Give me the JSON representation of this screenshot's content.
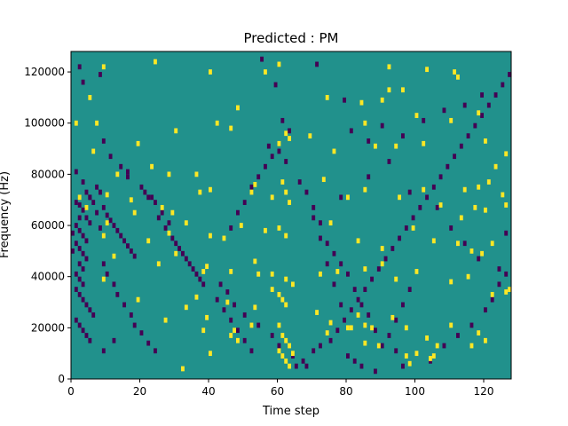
{
  "chart_data": {
    "type": "heatmap",
    "title": "Predicted : PM",
    "xlabel": "Time step",
    "ylabel": "Frequency (Hz)",
    "xlim": [
      0,
      128
    ],
    "ylim": [
      0,
      128000
    ],
    "x_ticks": [
      0,
      20,
      40,
      60,
      80,
      100,
      120
    ],
    "x_tick_labels": [
      "0",
      "20",
      "40",
      "60",
      "80",
      "100",
      "120"
    ],
    "y_ticks": [
      0,
      20000,
      40000,
      60000,
      80000,
      100000,
      120000
    ],
    "y_tick_labels": [
      "0",
      "20000",
      "40000",
      "60000",
      "80000",
      "100000",
      "120000"
    ],
    "colormap": "viridis",
    "value_levels": {
      "low": -1,
      "mid": 0,
      "high": 1
    },
    "colors": {
      "low": "#440154",
      "mid": "#21918c",
      "high": "#fde725"
    },
    "bin_width": 1,
    "bin_height": 2000,
    "cells_high": [
      [
        9,
        121000
      ],
      [
        40,
        119000
      ],
      [
        56,
        119000
      ],
      [
        92,
        121000
      ],
      [
        103,
        120000
      ],
      [
        111,
        119000
      ],
      [
        24,
        123000
      ],
      [
        60,
        122000
      ],
      [
        5,
        109000
      ],
      [
        92,
        112000
      ],
      [
        96,
        112000
      ],
      [
        112,
        117000
      ],
      [
        74,
        109000
      ],
      [
        84,
        107000
      ],
      [
        90,
        108000
      ],
      [
        100,
        102000
      ],
      [
        110,
        100000
      ],
      [
        118,
        103000
      ],
      [
        1,
        99000
      ],
      [
        7,
        99000
      ],
      [
        42,
        99000
      ],
      [
        48,
        105000
      ],
      [
        62,
        95000
      ],
      [
        63,
        93000
      ],
      [
        85,
        99000
      ],
      [
        6,
        88000
      ],
      [
        19,
        91000
      ],
      [
        30,
        96000
      ],
      [
        46,
        97000
      ],
      [
        60,
        91000
      ],
      [
        69,
        94000
      ],
      [
        76,
        88000
      ],
      [
        88,
        90000
      ],
      [
        94,
        90000
      ],
      [
        102,
        91000
      ],
      [
        120,
        92000
      ],
      [
        123,
        82000
      ],
      [
        126,
        87000
      ],
      [
        13,
        79000
      ],
      [
        23,
        82000
      ],
      [
        28,
        79000
      ],
      [
        36,
        79000
      ],
      [
        53,
        75000
      ],
      [
        61,
        76000
      ],
      [
        73,
        77000
      ],
      [
        85,
        73000
      ],
      [
        102,
        73000
      ],
      [
        114,
        73000
      ],
      [
        118,
        74000
      ],
      [
        121,
        76000
      ],
      [
        125,
        71000
      ],
      [
        2,
        70000
      ],
      [
        10,
        71000
      ],
      [
        17,
        69000
      ],
      [
        18,
        64000
      ],
      [
        26,
        66000
      ],
      [
        29,
        64000
      ],
      [
        37,
        72000
      ],
      [
        40,
        73000
      ],
      [
        52,
        72000
      ],
      [
        58,
        70000
      ],
      [
        62,
        72000
      ],
      [
        63,
        68000
      ],
      [
        80,
        70000
      ],
      [
        95,
        70000
      ],
      [
        107,
        67000
      ],
      [
        113,
        62000
      ],
      [
        117,
        66000
      ],
      [
        120,
        65000
      ],
      [
        126,
        67000
      ],
      [
        4,
        66000
      ],
      [
        9,
        55000
      ],
      [
        10,
        60000
      ],
      [
        22,
        53000
      ],
      [
        28,
        56000
      ],
      [
        33,
        60000
      ],
      [
        40,
        55000
      ],
      [
        44,
        54000
      ],
      [
        49,
        59000
      ],
      [
        56,
        57000
      ],
      [
        60,
        58000
      ],
      [
        62,
        55000
      ],
      [
        75,
        60000
      ],
      [
        83,
        53000
      ],
      [
        90,
        50000
      ],
      [
        99,
        58000
      ],
      [
        105,
        53000
      ],
      [
        112,
        52000
      ],
      [
        116,
        49000
      ],
      [
        119,
        48000
      ],
      [
        122,
        52000
      ],
      [
        12,
        47000
      ],
      [
        25,
        44000
      ],
      [
        30,
        48000
      ],
      [
        38,
        41000
      ],
      [
        39,
        43000
      ],
      [
        46,
        41000
      ],
      [
        53,
        45000
      ],
      [
        54,
        40000
      ],
      [
        58,
        40000
      ],
      [
        62,
        38000
      ],
      [
        64,
        36000
      ],
      [
        72,
        40000
      ],
      [
        77,
        41000
      ],
      [
        85,
        42000
      ],
      [
        90,
        44000
      ],
      [
        94,
        38000
      ],
      [
        100,
        41000
      ],
      [
        110,
        37000
      ],
      [
        115,
        39000
      ],
      [
        122,
        32000
      ],
      [
        126,
        33000
      ],
      [
        127,
        34000
      ],
      [
        9,
        38000
      ],
      [
        19,
        30000
      ],
      [
        33,
        27000
      ],
      [
        36,
        31000
      ],
      [
        45,
        29000
      ],
      [
        53,
        27000
      ],
      [
        58,
        34000
      ],
      [
        60,
        32000
      ],
      [
        61,
        30000
      ],
      [
        62,
        28000
      ],
      [
        71,
        25000
      ],
      [
        75,
        21000
      ],
      [
        81,
        19000
      ],
      [
        83,
        24000
      ],
      [
        85,
        20000
      ],
      [
        87,
        19000
      ],
      [
        93,
        23000
      ],
      [
        97,
        19000
      ],
      [
        103,
        15000
      ],
      [
        106,
        12000
      ],
      [
        110,
        20000
      ],
      [
        116,
        12000
      ],
      [
        118,
        17000
      ],
      [
        120,
        14000
      ],
      [
        27,
        22000
      ],
      [
        38,
        18000
      ],
      [
        39,
        23000
      ],
      [
        47,
        18000
      ],
      [
        52,
        20000
      ],
      [
        60,
        20000
      ],
      [
        61,
        16000
      ],
      [
        62,
        14000
      ],
      [
        63,
        12000
      ],
      [
        64,
        9000
      ],
      [
        61,
        8000
      ],
      [
        62,
        6000
      ],
      [
        63,
        4000
      ],
      [
        60,
        10000
      ],
      [
        74,
        17000
      ],
      [
        80,
        19000
      ],
      [
        85,
        13000
      ],
      [
        89,
        12000
      ],
      [
        97,
        8000
      ],
      [
        98,
        5000
      ],
      [
        100,
        9000
      ],
      [
        104,
        7000
      ],
      [
        105,
        8000
      ],
      [
        32,
        3000
      ],
      [
        40,
        9000
      ],
      [
        46,
        16000
      ],
      [
        48,
        14000
      ]
    ],
    "cells_low": [
      [
        1,
        59000
      ],
      [
        2,
        57000
      ],
      [
        3,
        55000
      ],
      [
        4,
        53000
      ],
      [
        2,
        50000
      ],
      [
        3,
        48000
      ],
      [
        4,
        46000
      ],
      [
        2,
        44000
      ],
      [
        3,
        42000
      ],
      [
        1,
        40000
      ],
      [
        2,
        38000
      ],
      [
        3,
        36000
      ],
      [
        1,
        34000
      ],
      [
        2,
        32000
      ],
      [
        3,
        30000
      ],
      [
        4,
        28000
      ],
      [
        5,
        26000
      ],
      [
        6,
        24000
      ],
      [
        1,
        22000
      ],
      [
        2,
        20000
      ],
      [
        3,
        18000
      ],
      [
        4,
        16000
      ],
      [
        5,
        14000
      ],
      [
        0,
        56000
      ],
      [
        1,
        52000
      ],
      [
        0,
        49000
      ],
      [
        2,
        62000
      ],
      [
        1,
        68000
      ],
      [
        2,
        67000
      ],
      [
        3,
        65000
      ],
      [
        4,
        62000
      ],
      [
        5,
        60000
      ],
      [
        3,
        76000
      ],
      [
        4,
        72000
      ],
      [
        5,
        70000
      ],
      [
        6,
        68000
      ],
      [
        7,
        74000
      ],
      [
        8,
        72000
      ],
      [
        9,
        66000
      ],
      [
        10,
        63000
      ],
      [
        11,
        61000
      ],
      [
        12,
        59000
      ],
      [
        13,
        57000
      ],
      [
        14,
        55000
      ],
      [
        15,
        53000
      ],
      [
        16,
        51000
      ],
      [
        17,
        49000
      ],
      [
        18,
        47000
      ],
      [
        2,
        121000
      ],
      [
        3,
        115000
      ],
      [
        8,
        118000
      ],
      [
        1,
        80000
      ],
      [
        5,
        70000
      ],
      [
        7,
        64000
      ],
      [
        8,
        58000
      ],
      [
        9,
        44000
      ],
      [
        10,
        40000
      ],
      [
        12,
        36000
      ],
      [
        13,
        32000
      ],
      [
        15,
        28000
      ],
      [
        17,
        24000
      ],
      [
        18,
        20000
      ],
      [
        20,
        17000
      ],
      [
        22,
        13000
      ],
      [
        24,
        10000
      ],
      [
        9,
        10000
      ],
      [
        12,
        14000
      ],
      [
        16,
        78000
      ],
      [
        20,
        74000
      ],
      [
        22,
        70000
      ],
      [
        24,
        68000
      ],
      [
        26,
        64000
      ],
      [
        28,
        60000
      ],
      [
        30,
        52000
      ],
      [
        32,
        48000
      ],
      [
        34,
        44000
      ],
      [
        36,
        40000
      ],
      [
        38,
        36000
      ],
      [
        42,
        30000
      ],
      [
        44,
        26000
      ],
      [
        46,
        22000
      ],
      [
        48,
        18000
      ],
      [
        50,
        14000
      ],
      [
        52,
        10000
      ],
      [
        55,
        124000
      ],
      [
        59,
        114000
      ],
      [
        61,
        100000
      ],
      [
        63,
        96000
      ],
      [
        57,
        90000
      ],
      [
        9,
        92000
      ],
      [
        11,
        86000
      ],
      [
        14,
        82000
      ],
      [
        16,
        80000
      ],
      [
        21,
        72000
      ],
      [
        23,
        70000
      ],
      [
        25,
        62000
      ],
      [
        27,
        58000
      ],
      [
        29,
        54000
      ],
      [
        31,
        50000
      ],
      [
        33,
        46000
      ],
      [
        35,
        42000
      ],
      [
        37,
        38000
      ],
      [
        43,
        36000
      ],
      [
        45,
        33000
      ],
      [
        47,
        28000
      ],
      [
        50,
        24000
      ],
      [
        54,
        20000
      ],
      [
        58,
        16000
      ],
      [
        60,
        12000
      ],
      [
        64,
        8000
      ],
      [
        65,
        4000
      ],
      [
        67,
        6000
      ],
      [
        68,
        4000
      ],
      [
        70,
        10000
      ],
      [
        72,
        12000
      ],
      [
        75,
        14000
      ],
      [
        77,
        18000
      ],
      [
        79,
        22000
      ],
      [
        81,
        26000
      ],
      [
        83,
        30000
      ],
      [
        85,
        34000
      ],
      [
        87,
        38000
      ],
      [
        89,
        42000
      ],
      [
        91,
        46000
      ],
      [
        93,
        50000
      ],
      [
        95,
        54000
      ],
      [
        97,
        58000
      ],
      [
        99,
        62000
      ],
      [
        101,
        66000
      ],
      [
        103,
        70000
      ],
      [
        105,
        74000
      ],
      [
        107,
        78000
      ],
      [
        109,
        82000
      ],
      [
        111,
        86000
      ],
      [
        113,
        90000
      ],
      [
        115,
        94000
      ],
      [
        117,
        98000
      ],
      [
        119,
        102000
      ],
      [
        121,
        106000
      ],
      [
        123,
        110000
      ],
      [
        125,
        114000
      ],
      [
        127,
        118000
      ],
      [
        71,
        122000
      ],
      [
        79,
        108000
      ],
      [
        81,
        96000
      ],
      [
        86,
        92000
      ],
      [
        90,
        98000
      ],
      [
        96,
        94000
      ],
      [
        102,
        100000
      ],
      [
        108,
        104000
      ],
      [
        114,
        106000
      ],
      [
        119,
        110000
      ],
      [
        70,
        62000
      ],
      [
        72,
        54000
      ],
      [
        74,
        44000
      ],
      [
        76,
        36000
      ],
      [
        78,
        28000
      ],
      [
        80,
        8000
      ],
      [
        82,
        6000
      ],
      [
        84,
        4000
      ],
      [
        88,
        2000
      ],
      [
        94,
        10000
      ],
      [
        96,
        4000
      ],
      [
        104,
        6000
      ],
      [
        108,
        12000
      ],
      [
        112,
        16000
      ],
      [
        116,
        20000
      ],
      [
        120,
        26000
      ],
      [
        122,
        30000
      ],
      [
        124,
        36000
      ],
      [
        126,
        40000
      ],
      [
        78,
        70000
      ],
      [
        86,
        78000
      ],
      [
        92,
        84000
      ],
      [
        98,
        72000
      ],
      [
        106,
        66000
      ],
      [
        110,
        58000
      ],
      [
        114,
        52000
      ],
      [
        118,
        46000
      ],
      [
        124,
        42000
      ],
      [
        126,
        56000
      ],
      [
        46,
        58000
      ],
      [
        48,
        64000
      ],
      [
        50,
        68000
      ],
      [
        52,
        74000
      ],
      [
        54,
        78000
      ],
      [
        56,
        82000
      ],
      [
        58,
        86000
      ],
      [
        60,
        88000
      ],
      [
        62,
        84000
      ],
      [
        66,
        76000
      ],
      [
        68,
        72000
      ],
      [
        70,
        66000
      ],
      [
        72,
        60000
      ],
      [
        74,
        52000
      ],
      [
        76,
        48000
      ],
      [
        78,
        44000
      ],
      [
        80,
        40000
      ],
      [
        82,
        34000
      ],
      [
        84,
        28000
      ],
      [
        86,
        24000
      ],
      [
        88,
        18000
      ],
      [
        90,
        12000
      ],
      [
        92,
        16000
      ],
      [
        94,
        22000
      ],
      [
        96,
        28000
      ],
      [
        98,
        34000
      ]
    ]
  }
}
